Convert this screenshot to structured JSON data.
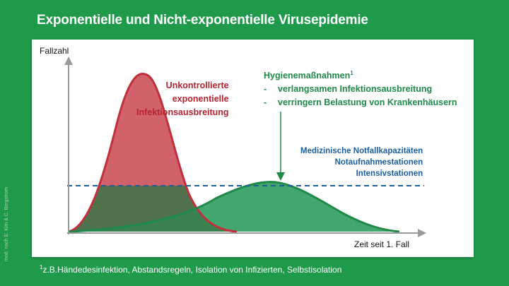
{
  "title": "Exponentielle und Nicht-exponentielle Virusepidemie",
  "axis": {
    "y_label": "Fallzahl",
    "x_label": "Zeit seit 1. Fall"
  },
  "red_label": [
    "Unkontrollierte",
    "exponentielle",
    "Infektionsausbreitung"
  ],
  "green_label": {
    "heading": "Hygienemaßnahmen",
    "heading_sup": "1",
    "items": [
      "verlangsamen Infektionsausbreitung",
      "verringern Belastung von Krankenhäusern"
    ],
    "dash": "-"
  },
  "blue_label": [
    "Medizinische Notfallkapazitäten",
    "Notaufnahmestationen",
    "Intensivstationen"
  ],
  "credit": "mod. nach E. Kim & C. Bergstrom",
  "footnote": {
    "sup": "1",
    "text": "z.B.Händedesinfektion, Abstandsregeln, Isolation von Infizierten, Selbstisolation"
  },
  "colors": {
    "background": "#1f9a4a",
    "red_curve": "#c0303a",
    "green_curve": "#1d8a47",
    "capacity_line": "#1a5fa0"
  }
}
